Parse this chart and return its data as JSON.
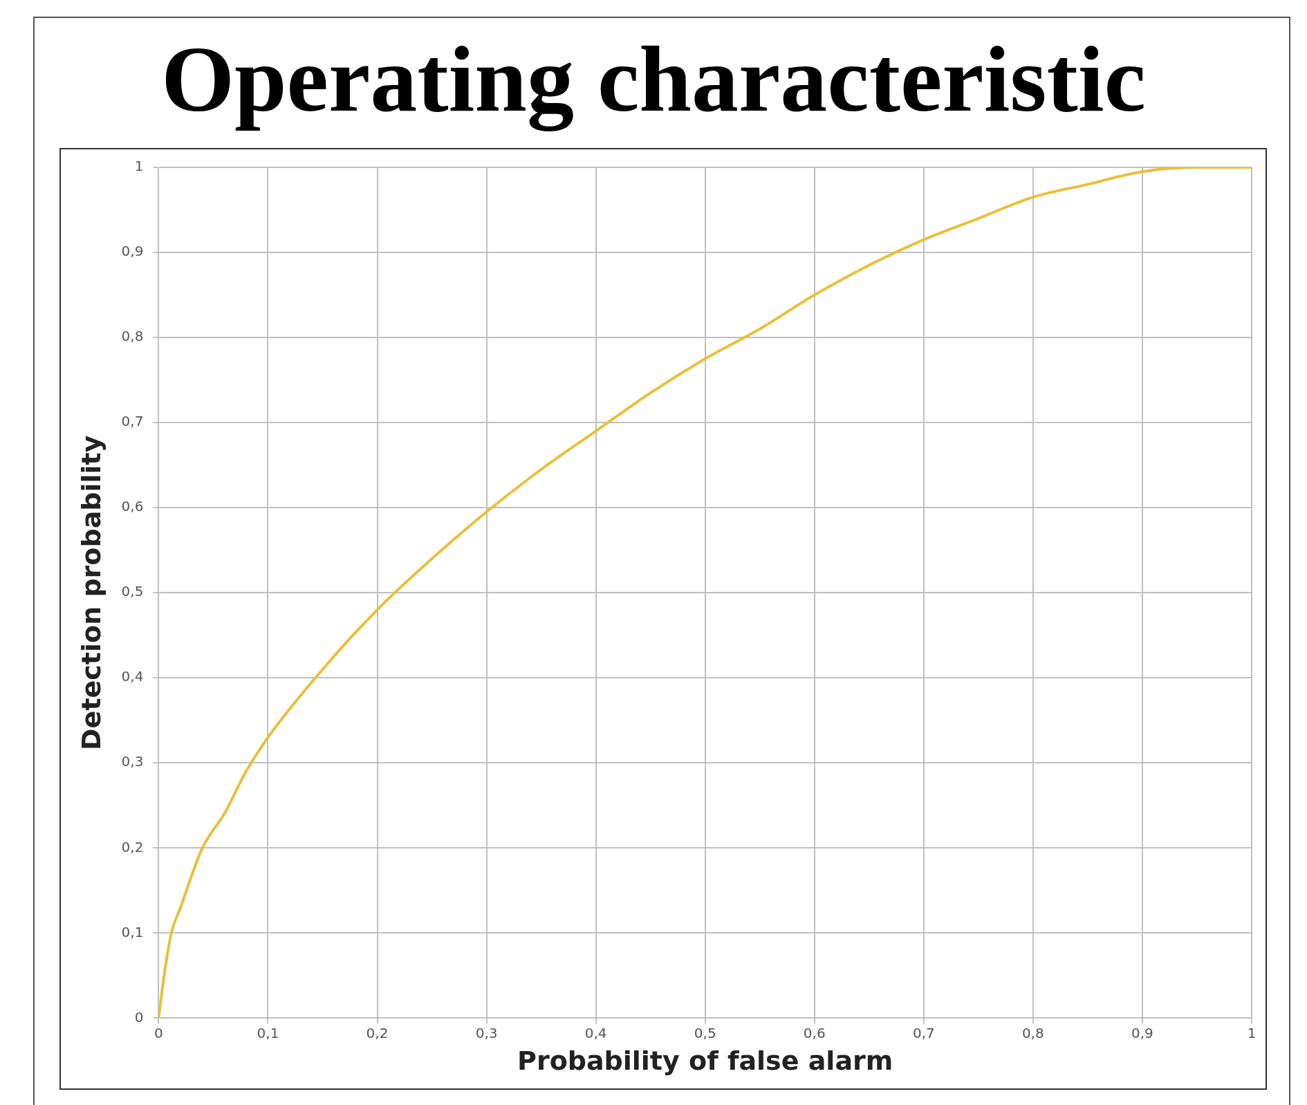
{
  "chart_data": {
    "type": "line",
    "title": "Operating characteristic",
    "xlabel": "Probability of false alarm",
    "ylabel": "Detection probability",
    "x": [
      0,
      0.005,
      0.0116,
      0.02,
      0.04,
      0.06,
      0.08,
      0.1,
      0.15,
      0.2,
      0.25,
      0.3,
      0.35,
      0.4,
      0.45,
      0.5,
      0.55,
      0.6,
      0.65,
      0.7,
      0.75,
      0.8,
      0.85,
      0.9,
      0.95,
      1
    ],
    "series": [
      {
        "color": "#e8c03a",
        "values": [
          0,
          0.05,
          0.1,
          0.13,
          0.2,
          0.24,
          0.29,
          0.33,
          0.41,
          0.48,
          0.54,
          0.595,
          0.645,
          0.69,
          0.735,
          0.775,
          0.81,
          0.85,
          0.885,
          0.915,
          0.94,
          0.965,
          0.98,
          0.995,
          1,
          1
        ]
      }
    ],
    "xlim": [
      0,
      1
    ],
    "ylim": [
      0,
      1
    ],
    "xticks": [
      0,
      {
        "value": 0.1,
        "label": "0,1"
      },
      {
        "value": 0.2,
        "label": "0,2"
      },
      {
        "value": 0.3,
        "label": "0,3"
      },
      {
        "value": 0.4,
        "label": "0,4"
      },
      {
        "value": 0.5,
        "label": "0,5"
      },
      {
        "value": 0.6,
        "label": "0,6"
      },
      {
        "value": 0.7,
        "label": "0,7"
      },
      {
        "value": 0.8,
        "label": "0,8"
      },
      {
        "value": 0.9,
        "label": "0,9"
      },
      1
    ],
    "yticks": [
      0,
      {
        "value": 0.1,
        "label": "0,1"
      },
      {
        "value": 0.2,
        "label": "0,2"
      },
      {
        "value": 0.3,
        "label": "0,3"
      },
      {
        "value": 0.4,
        "label": "0,4"
      },
      {
        "value": 0.5,
        "label": "0,5"
      },
      {
        "value": 0.6,
        "label": "0,6"
      },
      {
        "value": 0.7,
        "label": "0,7"
      },
      {
        "value": 0.8,
        "label": "0,8"
      },
      {
        "value": 0.9,
        "label": "0,9"
      },
      1
    ],
    "grid": true,
    "legend": false,
    "marker": "none",
    "line_style": "solid"
  }
}
